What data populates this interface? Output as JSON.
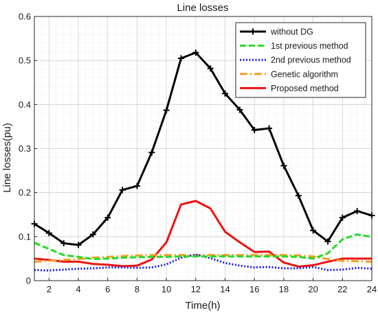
{
  "chart_data": {
    "type": "line",
    "title": "Line losses",
    "xlabel": "Time(h)",
    "ylabel": "Line losses(pu)",
    "xlim": [
      1,
      24
    ],
    "ylim": [
      0,
      0.6
    ],
    "xticks": [
      2,
      4,
      6,
      8,
      10,
      12,
      14,
      16,
      18,
      20,
      22,
      24
    ],
    "xtick_labels": [
      "2",
      "4",
      "6",
      "8",
      "10",
      "12",
      "14",
      "16",
      "18",
      "20",
      "22",
      "24"
    ],
    "yticks": [
      0,
      0.1,
      0.2,
      0.3,
      0.4,
      0.5,
      0.6
    ],
    "ytick_labels": [
      "0",
      "0.1",
      "0.2",
      "0.3",
      "0.4",
      "0.5",
      "0.6"
    ],
    "grid": true,
    "legend_position": "top-right",
    "x": [
      1,
      2,
      3,
      4,
      5,
      6,
      7,
      8,
      9,
      10,
      11,
      12,
      13,
      14,
      15,
      16,
      17,
      18,
      19,
      20,
      21,
      22,
      23,
      24
    ],
    "series": [
      {
        "name": "without DG",
        "color": "#000000",
        "style": "solid-plus-markers",
        "values": [
          0.129,
          0.108,
          0.085,
          0.081,
          0.105,
          0.143,
          0.206,
          0.215,
          0.291,
          0.387,
          0.505,
          0.518,
          0.482,
          0.425,
          0.388,
          0.342,
          0.346,
          0.261,
          0.193,
          0.114,
          0.089,
          0.143,
          0.158,
          0.148
        ]
      },
      {
        "name": "1st previous method",
        "color": "#22dd22",
        "style": "dashed",
        "values": [
          0.086,
          0.072,
          0.058,
          0.054,
          0.049,
          0.05,
          0.052,
          0.053,
          0.054,
          0.054,
          0.055,
          0.055,
          0.055,
          0.055,
          0.055,
          0.055,
          0.055,
          0.055,
          0.054,
          0.05,
          0.062,
          0.094,
          0.105,
          0.099
        ]
      },
      {
        "name": "2nd previous method",
        "color": "#1a1aee",
        "style": "dotted",
        "values": [
          0.024,
          0.023,
          0.025,
          0.027,
          0.028,
          0.03,
          0.03,
          0.029,
          0.03,
          0.037,
          0.052,
          0.059,
          0.051,
          0.04,
          0.034,
          0.03,
          0.031,
          0.028,
          0.028,
          0.031,
          0.024,
          0.025,
          0.029,
          0.027
        ]
      },
      {
        "name": "Genetic algorithm",
        "color": "#f0a020",
        "style": "dash-dot",
        "values": [
          0.043,
          0.045,
          0.047,
          0.049,
          0.052,
          0.054,
          0.056,
          0.057,
          0.058,
          0.058,
          0.058,
          0.058,
          0.058,
          0.058,
          0.058,
          0.058,
          0.058,
          0.058,
          0.057,
          0.055,
          0.049,
          0.045,
          0.044,
          0.043
        ]
      },
      {
        "name": "Proposed method",
        "color": "#ee1111",
        "style": "solid",
        "values": [
          0.05,
          0.047,
          0.043,
          0.043,
          0.038,
          0.036,
          0.033,
          0.034,
          0.048,
          0.087,
          0.173,
          0.181,
          0.164,
          0.111,
          0.087,
          0.065,
          0.066,
          0.041,
          0.032,
          0.035,
          0.043,
          0.05,
          0.05,
          0.05
        ]
      }
    ]
  }
}
